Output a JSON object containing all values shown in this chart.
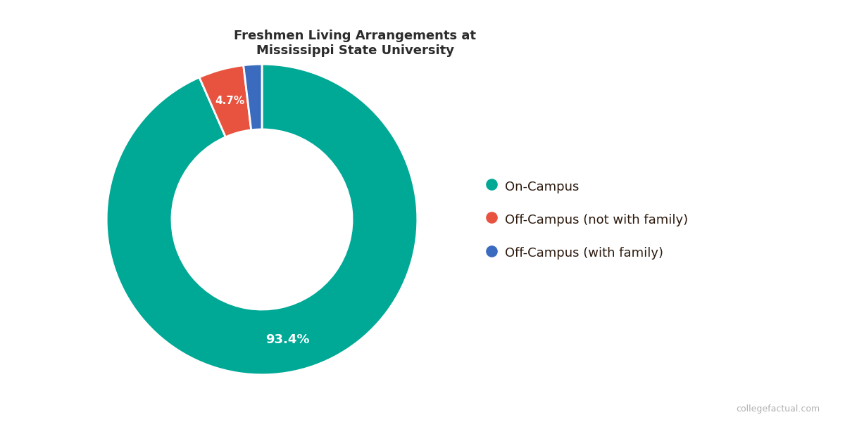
{
  "title": "Freshmen Living Arrangements at\nMississippi State University",
  "labels": [
    "On-Campus",
    "Off-Campus (not with family)",
    "Off-Campus (with family)"
  ],
  "values": [
    93.4,
    4.7,
    1.9
  ],
  "colors": [
    "#00a896",
    "#e8533f",
    "#3a6bbf"
  ],
  "title_fontsize": 13,
  "legend_fontsize": 13,
  "background_color": "#ffffff",
  "wedge_edge_color": "#ffffff"
}
